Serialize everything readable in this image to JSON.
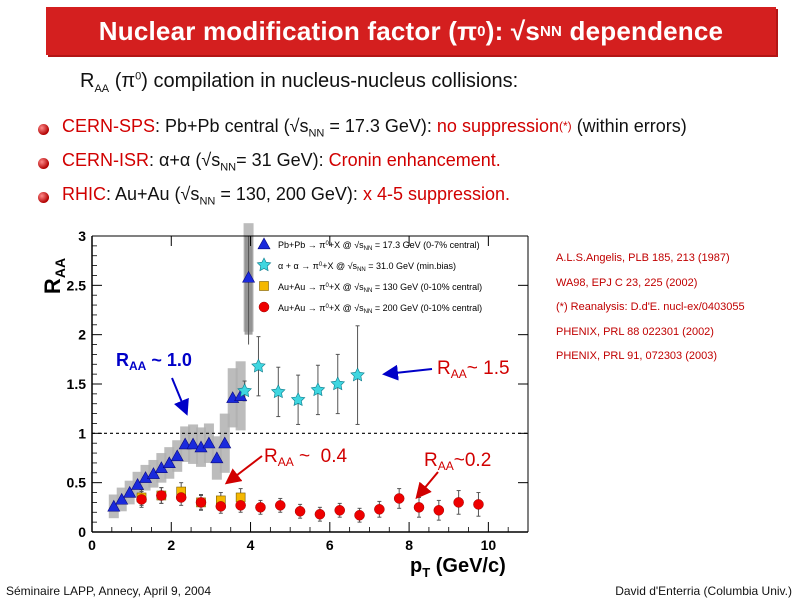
{
  "title": "Nuclear modification factor (π0): √sNN dependence",
  "title_parts": {
    "a": "Nuclear modification factor (π",
    "b": "0",
    "c": "): √s",
    "d": "NN",
    "e": " dependence"
  },
  "subtitle": {
    "a": "R",
    "b": "AA",
    "c": " (π",
    "d": "0",
    "e": ") compilation in nucleus-nucleus collisions:"
  },
  "bullets": [
    {
      "a": "CERN-SPS",
      "b": ": Pb+Pb central (√s",
      "c": "NN",
      "d": " = 17.3 GeV): ",
      "e": "no suppression",
      "f": "(*)",
      "g": " (within errors)"
    },
    {
      "a": "CERN-ISR",
      "b": ": α+α (√s",
      "c": "NN",
      "d": "= 31 GeV): ",
      "e": "Cronin enhancement."
    },
    {
      "a": "RHIC",
      "b": ": Au+Au (√s",
      "c": "NN",
      "d": " = 130, 200 GeV): ",
      "e": "x 4-5 suppression."
    }
  ],
  "references": [
    "A.L.S.Angelis, PLB 185, 213 (1987)",
    "WA98, EPJ C 23, 225 (2002)",
    "(*) Reanalysis: D.d'E. nucl-ex/0403055",
    "PHENIX, PRL 88 022301 (2002)",
    "PHENIX, PRL 91, 072303  (2003)"
  ],
  "footer": {
    "left": "Séminaire LAPP, Annecy, April 9, 2004",
    "right": "David d'Enterria (Columbia Univ.)"
  },
  "annotations": [
    {
      "a": "R",
      "b": "AA",
      "c": " ~ 1.0"
    },
    {
      "a": "R",
      "b": "AA",
      "c": "~ 1.5"
    },
    {
      "a": "R",
      "b": "AA",
      "c": " ~  0.4"
    },
    {
      "a": "R",
      "b": "AA",
      "c": "~0.2"
    }
  ],
  "colors": {
    "title_bg": "#d41f1f",
    "highlight": "#d10000",
    "sps": "#1a2adc",
    "isr": "#3fd6e0",
    "au130": "#f5b800",
    "au200": "#ee0000",
    "band": "#b0b0b0"
  },
  "chart_data": {
    "type": "scatter",
    "xlabel": {
      "a": "p",
      "b": "T",
      "c": " (GeV/c)"
    },
    "ylabel": {
      "a": "R",
      "b": "AA"
    },
    "xlim": [
      0,
      11
    ],
    "ylim": [
      0,
      3
    ],
    "x_ticks": [
      "0",
      "2",
      "4",
      "6",
      "8",
      "10"
    ],
    "y_ticks": [
      "0",
      "0.5",
      "1",
      "1.5",
      "2",
      "2.5",
      "3"
    ],
    "reference_line": 1,
    "legend_placement": "top",
    "series": [
      {
        "name": "Pb+Pb → π0+X @ √sNN = 17.3 GeV (0-7% central)",
        "marker": "triangle",
        "points": [
          [
            0.55,
            0.26
          ],
          [
            0.75,
            0.33
          ],
          [
            0.95,
            0.4
          ],
          [
            1.15,
            0.48
          ],
          [
            1.35,
            0.55
          ],
          [
            1.55,
            0.59
          ],
          [
            1.75,
            0.65
          ],
          [
            1.95,
            0.7
          ],
          [
            2.15,
            0.77
          ],
          [
            2.35,
            0.89
          ],
          [
            2.55,
            0.89
          ],
          [
            2.75,
            0.86
          ],
          [
            2.95,
            0.9
          ],
          [
            3.15,
            0.75
          ],
          [
            3.35,
            0.9
          ],
          [
            3.55,
            1.36
          ],
          [
            3.75,
            1.38
          ],
          [
            3.95,
            2.58
          ]
        ],
        "band": [
          0.12,
          0.12,
          0.12,
          0.13,
          0.13,
          0.14,
          0.15,
          0.16,
          0.16,
          0.18,
          0.2,
          0.2,
          0.2,
          0.22,
          0.3,
          0.3,
          0.35,
          0.55
        ]
      },
      {
        "name": "α + α → π0+X @ √sNN = 31.0 GeV (min.bias)",
        "marker": "star",
        "points": [
          [
            3.85,
            1.43
          ],
          [
            4.2,
            1.68
          ],
          [
            4.7,
            1.42
          ],
          [
            5.2,
            1.34
          ],
          [
            5.7,
            1.44
          ],
          [
            6.2,
            1.5
          ],
          [
            6.7,
            1.59
          ]
        ],
        "errors": [
          0.1,
          0.3,
          0.25,
          0.25,
          0.25,
          0.3,
          0.5
        ]
      },
      {
        "name": "Au+Au → π0+X @ √sNN = 130 GeV (0-10% central)",
        "marker": "square",
        "points": [
          [
            1.25,
            0.35
          ],
          [
            1.75,
            0.37
          ],
          [
            2.25,
            0.41
          ],
          [
            2.75,
            0.3
          ],
          [
            3.25,
            0.32
          ],
          [
            3.75,
            0.35
          ]
        ],
        "errors": [
          0.08,
          0.08,
          0.09,
          0.08,
          0.08,
          0.09
        ]
      },
      {
        "name": "Au+Au → π0+X @ √sNN = 200 GeV (0-10% central)",
        "marker": "circle",
        "points": [
          [
            1.25,
            0.33
          ],
          [
            1.75,
            0.37
          ],
          [
            2.25,
            0.35
          ],
          [
            2.75,
            0.3
          ],
          [
            3.25,
            0.26
          ],
          [
            3.75,
            0.27
          ],
          [
            4.25,
            0.25
          ],
          [
            4.75,
            0.27
          ],
          [
            5.25,
            0.21
          ],
          [
            5.75,
            0.18
          ],
          [
            6.25,
            0.22
          ],
          [
            6.75,
            0.17
          ],
          [
            7.25,
            0.23
          ],
          [
            7.75,
            0.34
          ],
          [
            8.25,
            0.25
          ],
          [
            8.75,
            0.22
          ],
          [
            9.25,
            0.3
          ],
          [
            9.75,
            0.28
          ]
        ],
        "errors": [
          0.08,
          0.08,
          0.08,
          0.07,
          0.07,
          0.07,
          0.07,
          0.07,
          0.07,
          0.07,
          0.07,
          0.07,
          0.08,
          0.1,
          0.1,
          0.1,
          0.12,
          0.12
        ]
      }
    ]
  }
}
